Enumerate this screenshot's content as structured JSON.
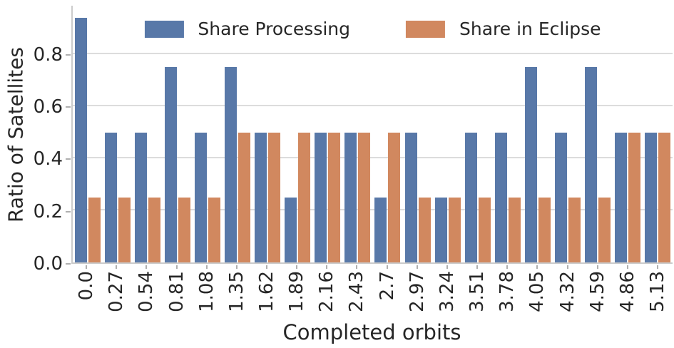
{
  "colors": {
    "series_blue": "#5878A8",
    "series_orange": "#D1885F",
    "grid": "#dcdcdc",
    "spine": "#cbcbcb",
    "tick": "#afafaf",
    "text": "#262626"
  },
  "chart_data": {
    "type": "bar",
    "title": "",
    "xlabel": "Completed orbits",
    "ylabel": "Ratio of Satellites",
    "categories": [
      "0.0",
      "0.27",
      "0.54",
      "0.81",
      "1.08",
      "1.35",
      "1.62",
      "1.89",
      "2.16",
      "2.43",
      "2.7",
      "2.97",
      "3.24",
      "3.51",
      "3.78",
      "4.05",
      "4.32",
      "4.59",
      "4.86",
      "5.13"
    ],
    "series": [
      {
        "name": "Share Processing",
        "color": "#5878A8",
        "values": [
          0.94,
          0.5,
          0.5,
          0.75,
          0.5,
          0.75,
          0.5,
          0.25,
          0.5,
          0.5,
          0.25,
          0.5,
          0.25,
          0.5,
          0.5,
          0.75,
          0.5,
          0.75,
          0.5,
          0.5
        ]
      },
      {
        "name": "Share in Eclipse",
        "color": "#D1885F",
        "values": [
          0.25,
          0.25,
          0.25,
          0.25,
          0.25,
          0.5,
          0.5,
          0.5,
          0.5,
          0.5,
          0.5,
          0.25,
          0.25,
          0.25,
          0.25,
          0.25,
          0.25,
          0.25,
          0.5,
          0.5
        ]
      }
    ],
    "yticks": [
      "0.0",
      "0.2",
      "0.4",
      "0.6",
      "0.8"
    ],
    "ylim": [
      0,
      0.987
    ],
    "grid": true,
    "legend_position": "upper center"
  }
}
